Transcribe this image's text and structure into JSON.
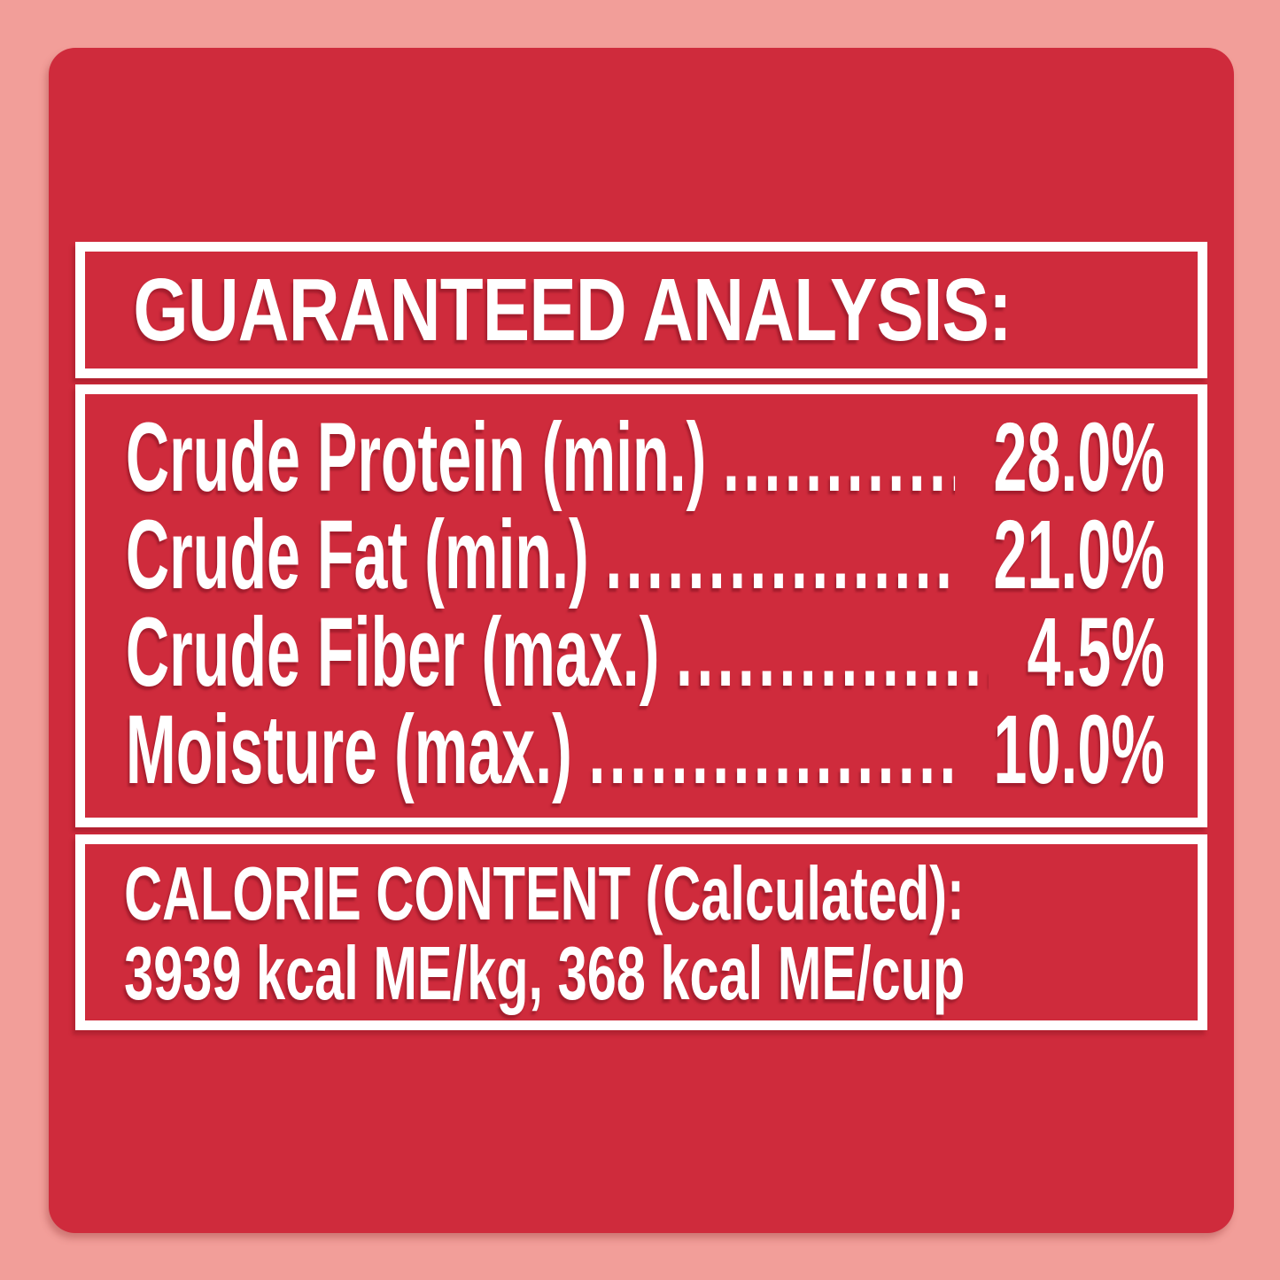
{
  "label": {
    "header_title": "GUARANTEED ANALYSIS:",
    "analysis_rows": [
      {
        "label": "Crude Protein (min.)",
        "value": "28.0%"
      },
      {
        "label": "Crude Fat (min.)",
        "value": "21.0%"
      },
      {
        "label": "Crude Fiber (max.)",
        "value": "4.5%"
      },
      {
        "label": "Moisture (max.)",
        "value": "10.0%"
      }
    ],
    "leader_dots": "........................................",
    "calorie": {
      "title": "CALORIE CONTENT (Calculated):",
      "values": "3939 kcal ME/kg, 368 kcal ME/cup"
    },
    "colors": {
      "background_pink": "#F29E99",
      "panel_red": "#CF2B3C",
      "text_white": "#FFFFFF",
      "border_white": "#FFFFFF"
    }
  }
}
